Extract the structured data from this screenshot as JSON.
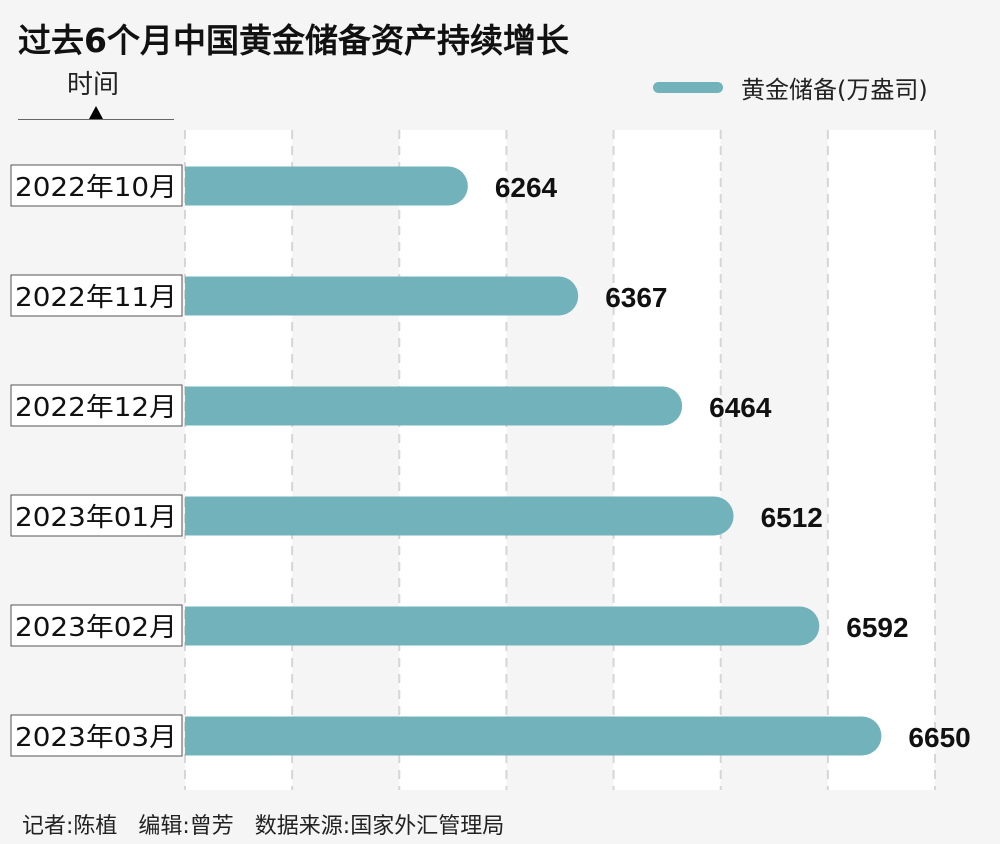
{
  "chart_data": {
    "type": "bar",
    "orientation": "horizontal",
    "title": "过去6个月中国黄金储备资产持续增长",
    "ylabel": "时间",
    "categories": [
      "2022年10月",
      "2022年11月",
      "2022年12月",
      "2023年01月",
      "2023年02月",
      "2023年03月"
    ],
    "series": [
      {
        "name": "黄金储备(万盎司)",
        "values": [
          6264,
          6367,
          6464,
          6512,
          6592,
          6650
        ]
      }
    ],
    "xlim": [
      6000,
      6700
    ],
    "x_gridlines": [
      6000,
      6100,
      6200,
      6300,
      6400,
      6500,
      6600,
      6700
    ],
    "grid": true,
    "data_labels": true,
    "legend_position": "top-right",
    "bar_color": "#72b3bb"
  },
  "footer": "记者:陈植   编辑:曾芳   数据来源:国家外汇管理局"
}
